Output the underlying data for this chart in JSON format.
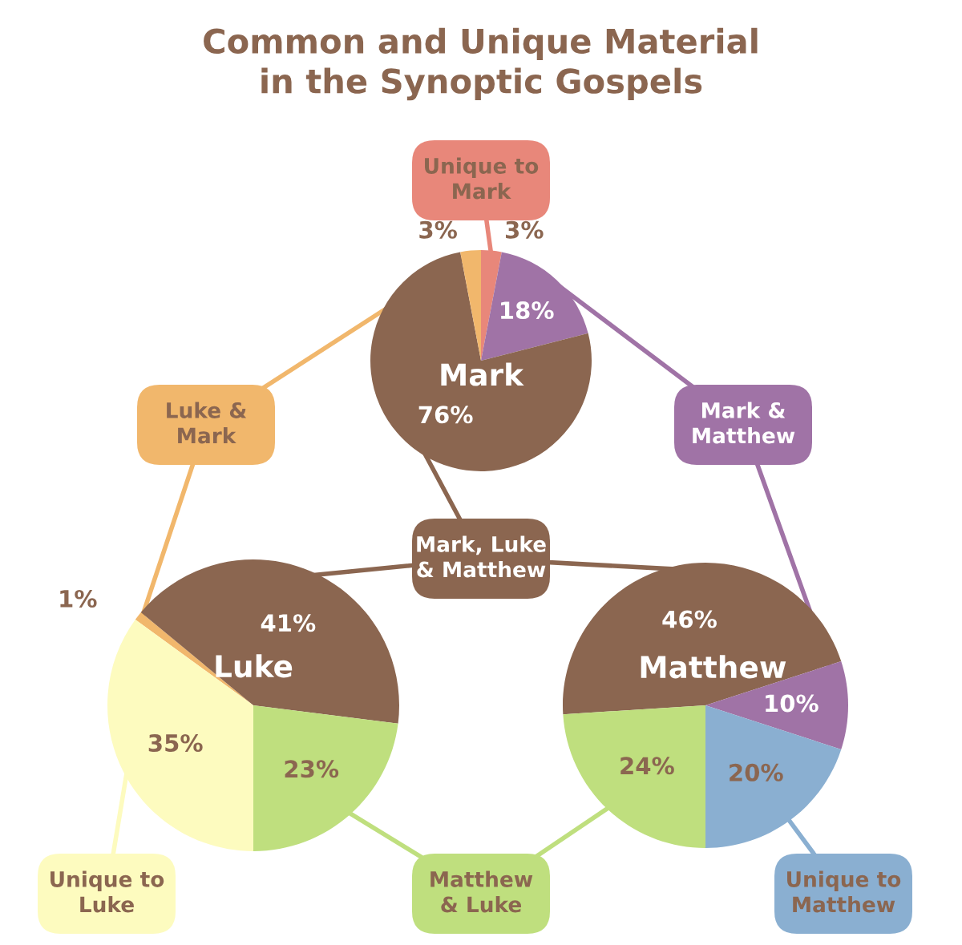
{
  "chart_data": [
    {
      "type": "other",
      "title": "Common and Unique Material\nin the Synoptic Gospels"
    },
    {
      "type": "pie",
      "title": "Mark",
      "categories": [
        "Unique to\nMark",
        "Mark &\nMatthew",
        "Mark, Luke\n& Matthew",
        "Luke &\nMark"
      ],
      "values": [
        3,
        18,
        76,
        3
      ],
      "value_labels": [
        "3%",
        "18%",
        "76%",
        "3%"
      ],
      "colors": [
        "#e8877a",
        "#a073a6",
        "#8b6650",
        "#f1b76c"
      ]
    },
    {
      "type": "pie",
      "title": "Luke",
      "categories": [
        null,
        null,
        "Matthew\n& Luke",
        "Unique to\nLuke"
      ],
      "values": [
        1,
        41,
        23,
        35
      ],
      "value_labels": [
        "1%",
        "41%",
        "23%",
        "35%"
      ],
      "colors": [
        "#f1b76c",
        "#8b6650",
        "#bfdf7e",
        "#fdfbbf"
      ]
    },
    {
      "type": "pie",
      "title": "Matthew",
      "categories": [
        null,
        null,
        "Unique to\nMatthew",
        null
      ],
      "values": [
        46,
        10,
        20,
        24
      ],
      "value_labels": [
        "46%",
        "10%",
        "20%",
        "24%"
      ],
      "colors": [
        "#8b6650",
        "#a073a6",
        "#8aafd1",
        "#bfdf7e"
      ]
    }
  ]
}
